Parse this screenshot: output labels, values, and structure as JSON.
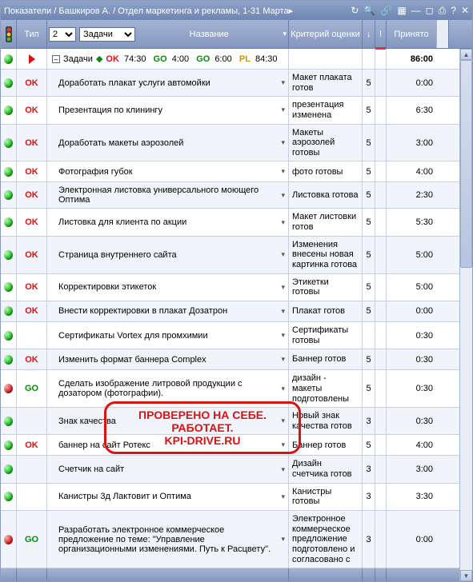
{
  "colors": {
    "ok": "#d11",
    "go": "#0a8a0a",
    "pl": "#c59a00",
    "header_grad_top": "#a4b4d3",
    "header_grad_bot": "#8497bf"
  },
  "titlebar": {
    "text": "Показатели / Башкиров А. / Отдел маркетинга и рекламы, 1-31 Марта▸"
  },
  "header": {
    "type_label": "Тип",
    "number_select": "2",
    "tasks_select": "Задачи",
    "name_label": "Название",
    "criteria_label": "Критерий оценки",
    "arrow_label": "↓",
    "excl_label": "!",
    "accepted_label": "Принято"
  },
  "summary": {
    "label": "Задачи",
    "parts": [
      {
        "code": "OK",
        "cls": "sum-ok",
        "time": "74:30"
      },
      {
        "code": "GO",
        "cls": "sum-go",
        "time": "4:00"
      },
      {
        "code": "GO",
        "cls": "sum-go",
        "time": "6:00"
      },
      {
        "code": "PL",
        "cls": "sum-pl",
        "time": "84:30"
      }
    ],
    "accepted": "86:00"
  },
  "rows": [
    {
      "light": "green",
      "type": "OK",
      "typeCls": "type-ok",
      "name": "Доработать плакат услуги автомойки",
      "crit": "Макет плаката готов",
      "score": "5",
      "acc": "0:00"
    },
    {
      "light": "green",
      "type": "OK",
      "typeCls": "type-ok",
      "name": "Презентация по клинингу",
      "crit": "презентация изменена",
      "score": "5",
      "acc": "6:30"
    },
    {
      "light": "green",
      "type": "OK",
      "typeCls": "type-ok",
      "name": "Доработать макеты аэрозолей",
      "crit": "Макеты аэрозолей готовы",
      "score": "5",
      "acc": "3:00"
    },
    {
      "light": "green",
      "type": "OK",
      "typeCls": "type-ok",
      "name": "Фотография губок",
      "crit": "фото готовы",
      "score": "5",
      "acc": "4:00"
    },
    {
      "light": "green",
      "type": "OK",
      "typeCls": "type-ok",
      "name": "Электронная листовка универсального моющего Оптима",
      "crit": "Листовка готова",
      "score": "5",
      "acc": "2:30"
    },
    {
      "light": "green",
      "type": "OK",
      "typeCls": "type-ok",
      "name": "Листовка для клиента по акции",
      "crit": "Макет листовки готов",
      "score": "5",
      "acc": "5:30"
    },
    {
      "light": "green",
      "type": "OK",
      "typeCls": "type-ok",
      "name": "Страница внутреннего сайта",
      "crit": "Изменения внесены новая картинка готова",
      "score": "5",
      "acc": "5:00"
    },
    {
      "light": "green",
      "type": "OK",
      "typeCls": "type-ok",
      "name": "Корректировки этикеток",
      "crit": "Этикетки готовы",
      "score": "5",
      "acc": "5:00"
    },
    {
      "light": "green",
      "type": "OK",
      "typeCls": "type-ok",
      "name": "Внести корректировки в плакат Дозатрон",
      "crit": "Плакат готов",
      "score": "5",
      "acc": "0:00"
    },
    {
      "light": "green",
      "type": "",
      "typeCls": "",
      "name": "Сертификаты Vortex для промхимии",
      "crit": "Сертификаты готовы",
      "score": "",
      "acc": "0:30"
    },
    {
      "light": "green",
      "type": "OK",
      "typeCls": "type-ok",
      "name": "Изменить формат баннера Complex",
      "crit": "Баннер готов",
      "score": "5",
      "acc": "0:30"
    },
    {
      "light": "red",
      "type": "GO",
      "typeCls": "type-go",
      "name": "Сделать изображение литровой продукции с дозатором (фотографии).",
      "crit": "дизайн - макеты подготовлены",
      "score": "5",
      "acc": "0:30"
    },
    {
      "light": "green",
      "type": "",
      "typeCls": "",
      "name": "Знак качества",
      "crit": "Новый знак качества готов",
      "score": "3",
      "acc": "0:30"
    },
    {
      "light": "green",
      "type": "OK",
      "typeCls": "type-ok",
      "name": "баннер на сайт Ротекс",
      "crit": "Баннер готов",
      "score": "5",
      "acc": "4:00"
    },
    {
      "light": "green",
      "type": "",
      "typeCls": "",
      "name": "Счетчик на сайт",
      "crit": "Дизайн счетчика готов",
      "score": "3",
      "acc": "3:00"
    },
    {
      "light": "green",
      "type": "",
      "typeCls": "",
      "name": "Канистры 3д Лактовит и Оптима",
      "crit": "Канистры готовы",
      "score": "3",
      "acc": "3:30"
    },
    {
      "light": "red",
      "type": "GO",
      "typeCls": "type-go",
      "name": "Разработать электронное коммерческое предложение по теме: \"Управление организационными изменениями. Путь к Расцвету\".",
      "crit": "Электронное коммерческое предложение подготовлено и согласовано с",
      "score": "3",
      "acc": "0:00"
    }
  ],
  "stamp": {
    "line1": "ПРОВЕРЕНО НА СЕБЕ.",
    "line2": "РАБОТАЕТ.",
    "line3": "KPI-DRIVE.RU"
  }
}
